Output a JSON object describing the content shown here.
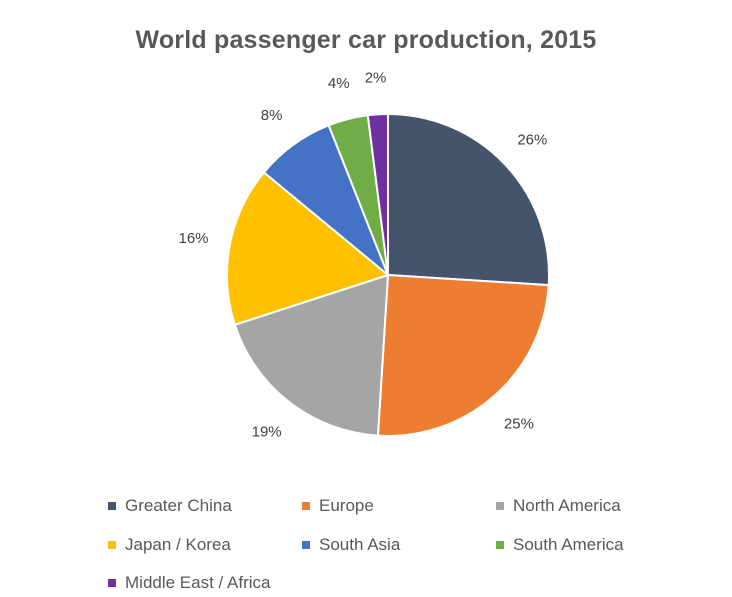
{
  "chart_data": {
    "type": "pie",
    "title": "World passenger car production, 2015",
    "legend_position": "bottom",
    "slices": [
      {
        "name": "Greater China",
        "value": 26,
        "label": "26%",
        "color": "#44546a"
      },
      {
        "name": "Europe",
        "value": 25,
        "label": "25%",
        "color": "#ed7d31"
      },
      {
        "name": "North America",
        "value": 19,
        "label": "19%",
        "color": "#a5a5a5"
      },
      {
        "name": "Japan / Korea",
        "value": 16,
        "label": "16%",
        "color": "#ffc000"
      },
      {
        "name": "South Asia",
        "value": 8,
        "label": "8%",
        "color": "#4472c4"
      },
      {
        "name": "South America",
        "value": 4,
        "label": "4%",
        "color": "#70ad47"
      },
      {
        "name": "Middle East / Africa",
        "value": 2,
        "label": "2%",
        "color": "#7030a0"
      }
    ]
  }
}
